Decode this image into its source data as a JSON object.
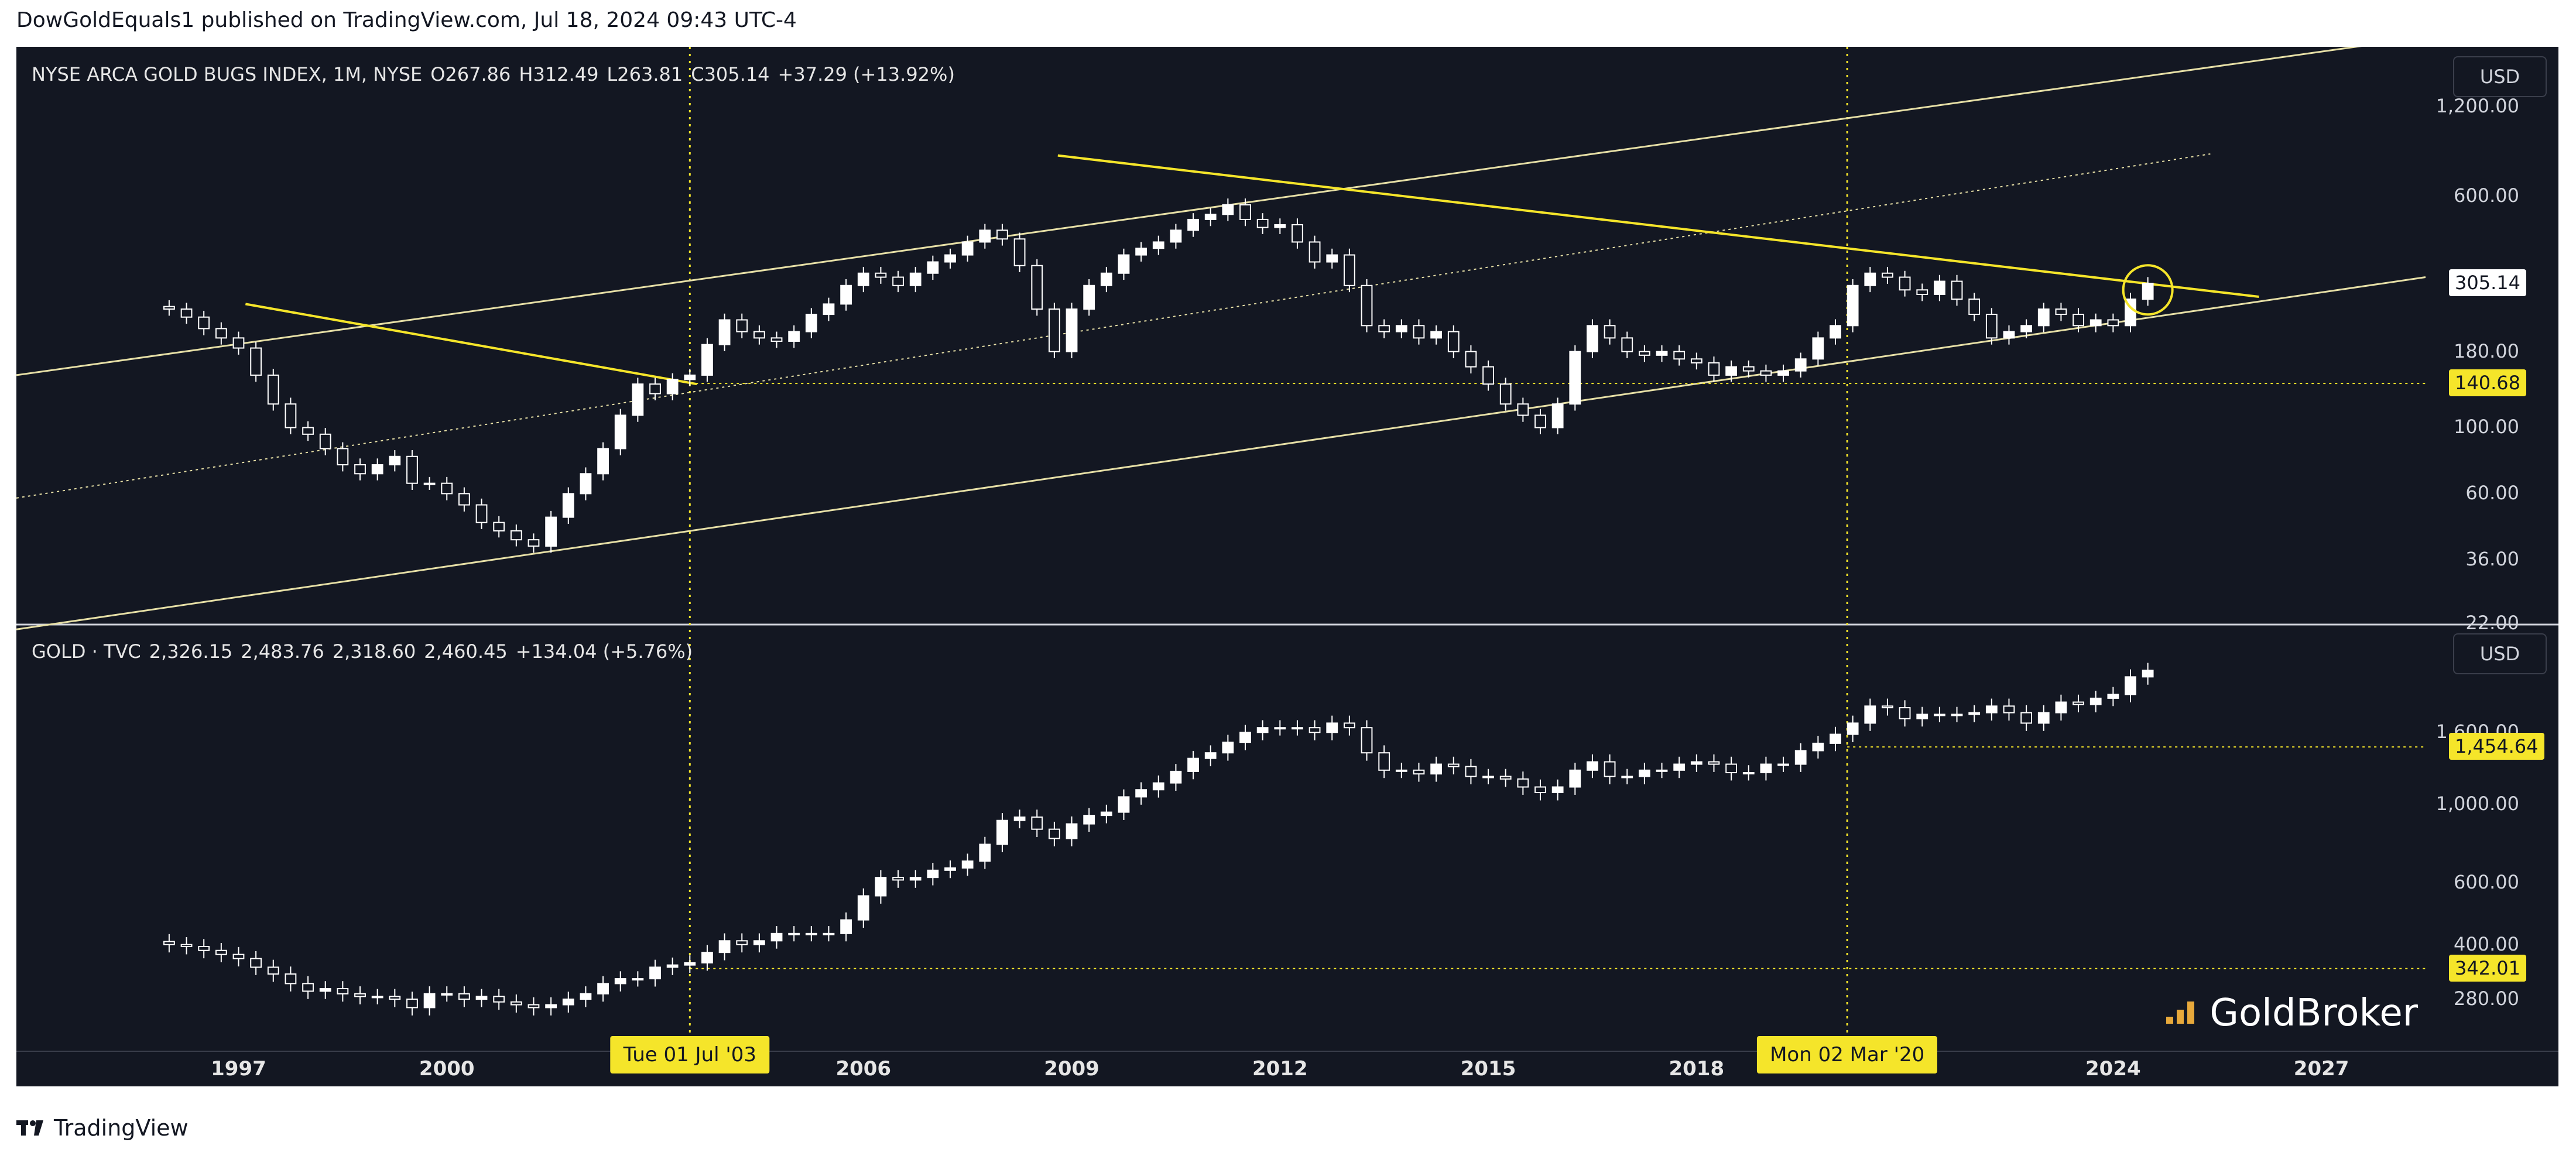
{
  "header": {
    "publisher_line": "DowGoldEquals1 published on TradingView.com, Jul 18, 2024 09:43 UTC-4"
  },
  "footer": {
    "brand": "TradingView"
  },
  "watermark": {
    "brand": "GoldBroker"
  },
  "colors": {
    "background": "#131722",
    "accent_yellow": "#f5e52a",
    "trend_line": "#e8d84a",
    "candles": "#ffffff",
    "channel": "#e6dfa6"
  },
  "chart_data": [
    {
      "type": "candlestick",
      "title": "NYSE ARCA GOLD BUGS INDEX, 1M, NYSE",
      "ohlc_label": {
        "o": "O267.86",
        "h": "H312.49",
        "l": "L263.81",
        "c": "C305.14",
        "change": "+37.29 (+13.92%)"
      },
      "currency": "USD",
      "y_scale": "log",
      "ylim": [
        22,
        1900
      ],
      "y_ticks": [
        "1,200.00",
        "600.00",
        "180.00",
        "100.00",
        "60.00",
        "36.00",
        "22.00"
      ],
      "y_tick_values": [
        1200,
        600,
        180,
        100,
        60,
        36,
        22
      ],
      "last_price": "305.14",
      "marked_price": "140.68",
      "x": [
        1996.0,
        1996.25,
        1996.5,
        1996.75,
        1997.0,
        1997.25,
        1997.5,
        1997.75,
        1998.0,
        1998.25,
        1998.5,
        1998.75,
        1999.0,
        1999.25,
        1999.5,
        1999.75,
        2000.0,
        2000.25,
        2000.5,
        2000.75,
        2001.0,
        2001.25,
        2001.5,
        2001.75,
        2002.0,
        2002.25,
        2002.5,
        2002.75,
        2003.0,
        2003.25,
        2003.5,
        2003.75,
        2004.0,
        2004.25,
        2004.5,
        2004.75,
        2005.0,
        2005.25,
        2005.5,
        2005.75,
        2006.0,
        2006.25,
        2006.5,
        2006.75,
        2007.0,
        2007.25,
        2007.5,
        2007.75,
        2008.0,
        2008.25,
        2008.5,
        2008.75,
        2009.0,
        2009.25,
        2009.5,
        2009.75,
        2010.0,
        2010.25,
        2010.5,
        2010.75,
        2011.0,
        2011.25,
        2011.5,
        2011.75,
        2012.0,
        2012.25,
        2012.5,
        2012.75,
        2013.0,
        2013.25,
        2013.5,
        2013.75,
        2014.0,
        2014.25,
        2014.5,
        2014.75,
        2015.0,
        2015.25,
        2015.5,
        2015.75,
        2016.0,
        2016.25,
        2016.5,
        2016.75,
        2017.0,
        2017.25,
        2017.5,
        2017.75,
        2018.0,
        2018.25,
        2018.5,
        2018.75,
        2019.0,
        2019.25,
        2019.5,
        2019.75,
        2020.0,
        2020.25,
        2020.5,
        2020.75,
        2021.0,
        2021.25,
        2021.5,
        2021.75,
        2022.0,
        2022.25,
        2022.5,
        2022.75,
        2023.0,
        2023.25,
        2023.5,
        2023.75,
        2024.0,
        2024.25,
        2024.5
      ],
      "close": [
        250,
        235,
        215,
        200,
        185,
        150,
        120,
        100,
        95,
        85,
        75,
        70,
        75,
        80,
        65,
        65,
        60,
        55,
        48,
        45,
        42,
        40,
        50,
        60,
        70,
        85,
        110,
        140,
        130,
        145,
        150,
        190,
        230,
        210,
        200,
        195,
        210,
        240,
        260,
        300,
        330,
        320,
        300,
        330,
        360,
        380,
        420,
        460,
        430,
        350,
        250,
        180,
        250,
        300,
        330,
        380,
        400,
        420,
        460,
        500,
        520,
        560,
        500,
        470,
        480,
        420,
        360,
        380,
        300,
        220,
        210,
        220,
        200,
        210,
        180,
        160,
        140,
        120,
        110,
        100,
        120,
        180,
        220,
        200,
        180,
        175,
        180,
        170,
        165,
        150,
        160,
        155,
        150,
        155,
        170,
        200,
        220,
        300,
        330,
        320,
        290,
        280,
        310,
        270,
        240,
        200,
        210,
        220,
        250,
        240,
        220,
        230,
        220,
        270,
        305
      ],
      "candle_count_note": ""
    },
    {
      "type": "candlestick",
      "title": "GOLD · TVC",
      "ohlc_label": {
        "o": "2,326.15",
        "h": "2,483.76",
        "l": "2,318.60",
        "c": "2,460.45",
        "change": "+134.04 (+5.76%)"
      },
      "currency": "USD",
      "y_scale": "log",
      "ylim": [
        200,
        3200
      ],
      "y_ticks": [
        "1,600.00",
        "1,000.00",
        "600.00",
        "400.00",
        "280.00"
      ],
      "y_tick_values": [
        1600,
        1000,
        600,
        400,
        280
      ],
      "marked_price": "1,454.64",
      "marked_price_2": "342.01",
      "x": [
        1996.0,
        1996.25,
        1996.5,
        1996.75,
        1997.0,
        1997.25,
        1997.5,
        1997.75,
        1998.0,
        1998.25,
        1998.5,
        1998.75,
        1999.0,
        1999.25,
        1999.5,
        1999.75,
        2000.0,
        2000.25,
        2000.5,
        2000.75,
        2001.0,
        2001.25,
        2001.5,
        2001.75,
        2002.0,
        2002.25,
        2002.5,
        2002.75,
        2003.0,
        2003.25,
        2003.5,
        2003.75,
        2004.0,
        2004.25,
        2004.5,
        2004.75,
        2005.0,
        2005.25,
        2005.5,
        2005.75,
        2006.0,
        2006.25,
        2006.5,
        2006.75,
        2007.0,
        2007.25,
        2007.5,
        2007.75,
        2008.0,
        2008.25,
        2008.5,
        2008.75,
        2009.0,
        2009.25,
        2009.5,
        2009.75,
        2010.0,
        2010.25,
        2010.5,
        2010.75,
        2011.0,
        2011.25,
        2011.5,
        2011.75,
        2012.0,
        2012.25,
        2012.5,
        2012.75,
        2013.0,
        2013.25,
        2013.5,
        2013.75,
        2014.0,
        2014.25,
        2014.5,
        2014.75,
        2015.0,
        2015.25,
        2015.5,
        2015.75,
        2016.0,
        2016.25,
        2016.5,
        2016.75,
        2017.0,
        2017.25,
        2017.5,
        2017.75,
        2018.0,
        2018.25,
        2018.5,
        2018.75,
        2019.0,
        2019.25,
        2019.5,
        2019.75,
        2020.0,
        2020.25,
        2020.5,
        2020.75,
        2021.0,
        2021.25,
        2021.5,
        2021.75,
        2022.0,
        2022.25,
        2022.5,
        2022.75,
        2023.0,
        2023.25,
        2023.5,
        2023.75,
        2024.0,
        2024.25,
        2024.5
      ],
      "close": [
        400,
        395,
        385,
        375,
        365,
        345,
        330,
        310,
        295,
        300,
        290,
        285,
        285,
        280,
        265,
        290,
        290,
        280,
        285,
        275,
        270,
        265,
        270,
        280,
        290,
        310,
        320,
        320,
        345,
        350,
        355,
        380,
        410,
        400,
        410,
        430,
        430,
        430,
        430,
        470,
        550,
        620,
        610,
        620,
        650,
        660,
        690,
        770,
        900,
        920,
        850,
        800,
        880,
        930,
        950,
        1050,
        1100,
        1150,
        1240,
        1350,
        1400,
        1500,
        1600,
        1650,
        1650,
        1650,
        1600,
        1700,
        1650,
        1400,
        1250,
        1250,
        1220,
        1300,
        1280,
        1200,
        1200,
        1180,
        1120,
        1080,
        1120,
        1250,
        1320,
        1200,
        1200,
        1250,
        1250,
        1300,
        1320,
        1300,
        1230,
        1230,
        1300,
        1300,
        1420,
        1490,
        1580,
        1700,
        1900,
        1880,
        1750,
        1800,
        1800,
        1800,
        1820,
        1900,
        1820,
        1700,
        1820,
        1950,
        1920,
        2000,
        2050,
        2300,
        2400
      ]
    }
  ],
  "x_axis": {
    "ticks": [
      "1997",
      "2000",
      "2006",
      "2009",
      "2012",
      "2015",
      "2018",
      "2024",
      "2027"
    ],
    "tick_years": [
      1997,
      2000,
      2006,
      2009,
      2012,
      2015,
      2018,
      2024,
      2027
    ],
    "xlim": [
      1993.8,
      2028.5
    ],
    "highlighted": [
      {
        "label": "Tue 01 Jul '03",
        "year": 2003.5
      },
      {
        "label": "Mon 02 Mar '20",
        "year": 2020.17
      }
    ]
  }
}
